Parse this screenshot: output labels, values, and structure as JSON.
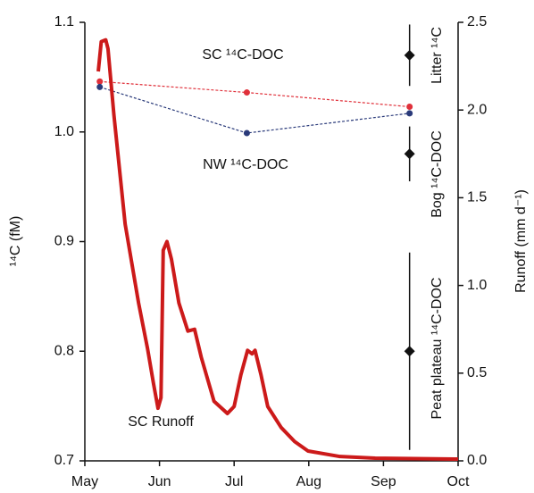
{
  "chart_data": {
    "type": "line",
    "xlim": [
      0,
      5
    ],
    "xticks": [
      {
        "value": 0,
        "label": "May"
      },
      {
        "value": 1,
        "label": "Jun"
      },
      {
        "value": 2,
        "label": "Jul"
      },
      {
        "value": 3,
        "label": "Aug"
      },
      {
        "value": 4,
        "label": "Sep"
      },
      {
        "value": 5,
        "label": "Oct"
      }
    ],
    "ylabel": "¹⁴C (fM)",
    "y2label": "Runoff (mm d⁻¹)",
    "ylim": [
      0.7,
      1.1
    ],
    "yticks": [
      {
        "value": 0.7,
        "label": "0.7"
      },
      {
        "value": 0.8,
        "label": "0.8"
      },
      {
        "value": 0.9,
        "label": "0.9"
      },
      {
        "value": 1,
        "label": "1.0"
      },
      {
        "value": 1.1,
        "label": "1.1"
      }
    ],
    "y2lim": [
      0,
      2.5
    ],
    "y2ticks": [
      {
        "value": 0,
        "label": "0.0"
      },
      0.5,
      {
        "value": 1,
        "label": "1.0"
      },
      1.5,
      {
        "value": 2,
        "label": "2.0"
      },
      2.5
    ],
    "series": [
      {
        "name": "SC ¹⁴C-DOC",
        "color": "#e0303a",
        "dashed": true,
        "x": [
          0.2,
          2.17,
          4.35
        ],
        "values": [
          1.046,
          1.036,
          1.023
        ]
      },
      {
        "name": "NW ¹⁴C-DOC",
        "color": "#2a3a7a",
        "dashed": true,
        "x": [
          0.2,
          2.17,
          4.35
        ],
        "values": [
          1.041,
          0.999,
          1.017
        ]
      },
      {
        "name": "SC Runoff",
        "color": "#cc1a1a",
        "axis": "y2",
        "dashed": false,
        "x": [
          0.18,
          0.22,
          0.28,
          0.31,
          0.39,
          0.54,
          0.72,
          0.84,
          0.92,
          0.98,
          1.02,
          1.05,
          1.1,
          1.16,
          1.26,
          1.38,
          1.47,
          1.56,
          1.73,
          1.91,
          2.0,
          2.09,
          2.18,
          2.24,
          2.28,
          2.36,
          2.45,
          2.63,
          2.81,
          2.99,
          3.41,
          3.89,
          5.0
        ],
        "values": [
          2.22,
          2.39,
          2.4,
          2.35,
          1.97,
          1.35,
          0.9,
          0.64,
          0.44,
          0.3,
          0.36,
          1.2,
          1.25,
          1.15,
          0.9,
          0.74,
          0.75,
          0.59,
          0.34,
          0.27,
          0.31,
          0.49,
          0.63,
          0.61,
          0.63,
          0.49,
          0.31,
          0.19,
          0.11,
          0.056,
          0.025,
          0.015,
          0.01
        ]
      }
    ],
    "markers": [
      {
        "name": "Litter ¹⁴C",
        "x": 4.35,
        "value": 1.07,
        "error": 0.028
      },
      {
        "name": "Bog ¹⁴C-DOC",
        "x": 4.35,
        "value": 0.98,
        "error": 0.025
      },
      {
        "name": "Peat plateau ¹⁴C-DOC",
        "x": 4.35,
        "value": 0.8,
        "error": 0.09
      }
    ]
  }
}
